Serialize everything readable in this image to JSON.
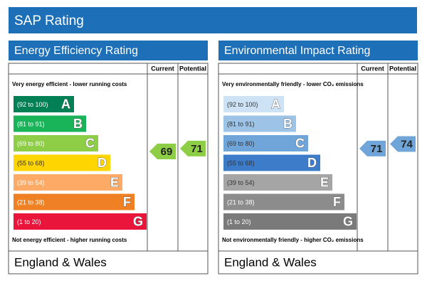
{
  "header": {
    "title": "SAP Rating"
  },
  "panels": [
    {
      "title": "Energy Efficiency Rating",
      "columns": [
        "Current",
        "Potential"
      ],
      "top_note": "Very energy efficient - lower running costs",
      "bottom_note": "Not energy efficient - higher running costs",
      "bands": [
        {
          "range": "(92 to 100)",
          "letter": "A",
          "color": "#008054",
          "text_color": "#ffffff"
        },
        {
          "range": "(81 to 91)",
          "letter": "B",
          "color": "#19b459",
          "text_color": "#ffffff"
        },
        {
          "range": "(69 to 80)",
          "letter": "C",
          "color": "#8dce46",
          "text_color": "#ffffff"
        },
        {
          "range": "(55 to 68)",
          "letter": "D",
          "color": "#ffd500",
          "text_color": "#333333"
        },
        {
          "range": "(39 to 54)",
          "letter": "E",
          "color": "#fcaa65",
          "text_color": "#ffffff"
        },
        {
          "range": "(21 to 38)",
          "letter": "F",
          "color": "#ef8023",
          "text_color": "#ffffff"
        },
        {
          "range": "(1 to 20)",
          "letter": "G",
          "color": "#e9153b",
          "text_color": "#ffffff"
        }
      ],
      "current": 69,
      "potential": 71,
      "footer": "England & Wales"
    },
    {
      "title": "Environmental Impact Rating",
      "columns": [
        "Current",
        "Potential"
      ],
      "top_note": "Very environmentally friendly - lower CO₂ emissions",
      "bottom_note": "Not environmentally friendly - higher CO₂ emissions",
      "bands": [
        {
          "range": "(92 to 100)",
          "letter": "A",
          "color": "#cde3f5",
          "text_color": "#333333"
        },
        {
          "range": "(81 to 91)",
          "letter": "B",
          "color": "#9dc3e6",
          "text_color": "#333333"
        },
        {
          "range": "(69 to 80)",
          "letter": "C",
          "color": "#6fa5d8",
          "text_color": "#333333"
        },
        {
          "range": "(55 to 68)",
          "letter": "D",
          "color": "#3d7cc9",
          "text_color": "#333333"
        },
        {
          "range": "(39 to 54)",
          "letter": "E",
          "color": "#a5a5a5",
          "text_color": "#333333"
        },
        {
          "range": "(21 to 38)",
          "letter": "F",
          "color": "#8c8c8c",
          "text_color": "#ffffff"
        },
        {
          "range": "(1 to 20)",
          "letter": "G",
          "color": "#7a7a7a",
          "text_color": "#ffffff"
        }
      ],
      "current": 71,
      "potential": 74,
      "footer": "England & Wales"
    }
  ]
}
